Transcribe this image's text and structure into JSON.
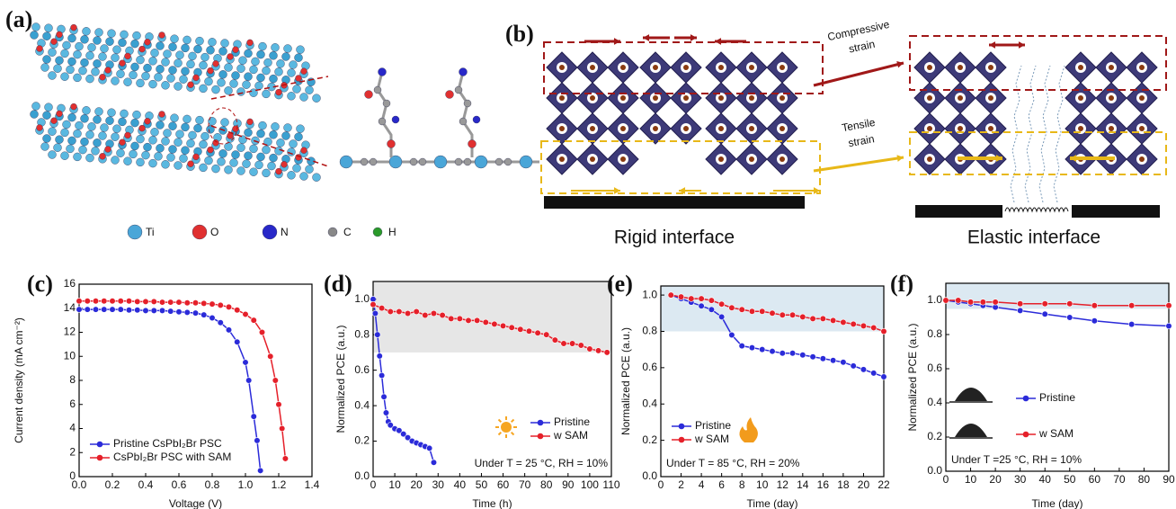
{
  "diagrams": {
    "a": {
      "label": "(a)",
      "legend": [
        "Ti",
        "O",
        "N",
        "C",
        "H"
      ]
    },
    "b": {
      "label": "(b)",
      "compressive": "Compressive\nstrain",
      "tensile": "Tensile\nstrain",
      "rigid": "Rigid interface",
      "elastic": "Elastic interface"
    }
  },
  "chart_data": [
    {
      "type": "line",
      "panel_label": "(c)",
      "x_label": "Voltage (V)",
      "y_label": "Current density (mA cm⁻²)",
      "legend": "lower-left",
      "xlim": [
        0,
        1.4
      ],
      "ylim": [
        0,
        16
      ],
      "xticks": [
        {
          "value": 0,
          "label": "0.0"
        },
        {
          "value": 0.2,
          "label": "0.2"
        },
        {
          "value": 0.4,
          "label": "0.4"
        },
        {
          "value": 0.6,
          "label": "0.6"
        },
        {
          "value": 0.8,
          "label": "0.8"
        },
        {
          "value": 1,
          "label": "1.0"
        },
        {
          "value": 1.2,
          "label": "1.2"
        },
        {
          "value": 1.4,
          "label": "1.4"
        }
      ],
      "yticks": [
        0,
        2,
        4,
        6,
        8,
        10,
        12,
        14,
        16
      ],
      "series": [
        {
          "name": "Pristine CsPbI₂Br PSC",
          "color": "#2b2bd9",
          "x": [
            0,
            0.05,
            0.1,
            0.15,
            0.2,
            0.25,
            0.3,
            0.35,
            0.4,
            0.45,
            0.5,
            0.55,
            0.6,
            0.65,
            0.7,
            0.75,
            0.8,
            0.85,
            0.9,
            0.95,
            1.0,
            1.02,
            1.05,
            1.07,
            1.09
          ],
          "values": [
            13.9,
            13.9,
            13.9,
            13.9,
            13.9,
            13.9,
            13.85,
            13.85,
            13.8,
            13.8,
            13.8,
            13.75,
            13.7,
            13.65,
            13.6,
            13.45,
            13.2,
            12.8,
            12.2,
            11.2,
            9.5,
            8,
            5,
            3,
            0.5
          ]
        },
        {
          "name": "CsPbI₂Br PSC with SAM",
          "color": "#e5202a",
          "x": [
            0,
            0.05,
            0.1,
            0.15,
            0.2,
            0.25,
            0.3,
            0.35,
            0.4,
            0.45,
            0.5,
            0.55,
            0.6,
            0.65,
            0.7,
            0.75,
            0.8,
            0.85,
            0.9,
            0.95,
            1.0,
            1.05,
            1.1,
            1.15,
            1.18,
            1.2,
            1.22,
            1.24
          ],
          "values": [
            14.6,
            14.6,
            14.6,
            14.6,
            14.6,
            14.6,
            14.6,
            14.55,
            14.55,
            14.55,
            14.5,
            14.5,
            14.5,
            14.45,
            14.45,
            14.4,
            14.35,
            14.25,
            14.1,
            13.85,
            13.5,
            13,
            12,
            10,
            8,
            6,
            4,
            1.5
          ]
        }
      ]
    },
    {
      "type": "line",
      "panel_label": "(d)",
      "x_label": "Time (h)",
      "y_label": "Normalized PCE (a.u.)",
      "legend": "lower-right",
      "annotation": "Under T = 25 °C, RH = 10%",
      "band": [
        0.7,
        1.1
      ],
      "xlim": [
        0,
        110
      ],
      "ylim": [
        0,
        1.1
      ],
      "xticks": [
        0,
        10,
        20,
        30,
        40,
        50,
        60,
        70,
        80,
        90,
        100,
        110
      ],
      "yticks": [
        {
          "value": 0,
          "label": "0.0"
        },
        {
          "value": 0.2,
          "label": "0.2"
        },
        {
          "value": 0.4,
          "label": "0.4"
        },
        {
          "value": 0.6,
          "label": "0.6"
        },
        {
          "value": 0.8,
          "label": "0.8"
        },
        {
          "value": 1,
          "label": "1.0"
        }
      ],
      "series": [
        {
          "name": "Pristine",
          "color": "#2b2bd9",
          "x": [
            0,
            1,
            2,
            3,
            4,
            5,
            6,
            7,
            8,
            10,
            12,
            14,
            16,
            18,
            20,
            22,
            24,
            26,
            28
          ],
          "values": [
            1.0,
            0.92,
            0.8,
            0.68,
            0.57,
            0.45,
            0.36,
            0.31,
            0.29,
            0.27,
            0.26,
            0.24,
            0.22,
            0.2,
            0.19,
            0.18,
            0.17,
            0.16,
            0.08
          ]
        },
        {
          "name": "w SAM",
          "color": "#e5202a",
          "x": [
            0,
            4,
            8,
            12,
            16,
            20,
            24,
            28,
            32,
            36,
            40,
            44,
            48,
            52,
            56,
            60,
            64,
            68,
            72,
            76,
            80,
            84,
            88,
            92,
            96,
            100,
            104,
            108
          ],
          "values": [
            0.97,
            0.95,
            0.93,
            0.93,
            0.92,
            0.93,
            0.91,
            0.92,
            0.91,
            0.89,
            0.89,
            0.88,
            0.88,
            0.87,
            0.86,
            0.85,
            0.84,
            0.83,
            0.82,
            0.81,
            0.8,
            0.77,
            0.75,
            0.75,
            0.74,
            0.72,
            0.71,
            0.7
          ]
        }
      ]
    },
    {
      "type": "line",
      "panel_label": "(e)",
      "x_label": "Time (day)",
      "y_label": "Normalized PCE (a.u.)",
      "legend": "lower-left",
      "annotation": "Under T = 85 °C,  RH = 20%",
      "band": [
        0.8,
        1.05
      ],
      "xlim": [
        0,
        22
      ],
      "ylim": [
        0,
        1.05
      ],
      "xticks": [
        0,
        2,
        4,
        6,
        8,
        10,
        12,
        14,
        16,
        18,
        20,
        22
      ],
      "yticks": [
        {
          "value": 0,
          "label": "0.0"
        },
        {
          "value": 0.2,
          "label": "0.2"
        },
        {
          "value": 0.4,
          "label": "0.4"
        },
        {
          "value": 0.6,
          "label": "0.6"
        },
        {
          "value": 0.8,
          "label": "0.8"
        },
        {
          "value": 1,
          "label": "1.0"
        }
      ],
      "series": [
        {
          "name": "Pristine",
          "color": "#2b2bd9",
          "x": [
            1,
            2,
            3,
            4,
            5,
            6,
            7,
            8,
            9,
            10,
            11,
            12,
            13,
            14,
            15,
            16,
            17,
            18,
            19,
            20,
            21,
            22
          ],
          "values": [
            1.0,
            0.98,
            0.96,
            0.94,
            0.92,
            0.88,
            0.78,
            0.72,
            0.71,
            0.7,
            0.69,
            0.68,
            0.68,
            0.67,
            0.66,
            0.65,
            0.64,
            0.63,
            0.61,
            0.59,
            0.57,
            0.55
          ]
        },
        {
          "name": "w SAM",
          "color": "#e5202a",
          "x": [
            1,
            2,
            3,
            4,
            5,
            6,
            7,
            8,
            9,
            10,
            11,
            12,
            13,
            14,
            15,
            16,
            17,
            18,
            19,
            20,
            21,
            22
          ],
          "values": [
            1.0,
            0.99,
            0.98,
            0.98,
            0.97,
            0.95,
            0.93,
            0.92,
            0.91,
            0.91,
            0.9,
            0.89,
            0.89,
            0.88,
            0.87,
            0.87,
            0.86,
            0.85,
            0.84,
            0.83,
            0.82,
            0.8
          ]
        }
      ]
    },
    {
      "type": "line",
      "panel_label": "(f)",
      "x_label": "Time (day)",
      "y_label": "Normalized PCE (a.u.)",
      "legend": "center-left",
      "annotation": "Under T =25 °C, RH = 10%",
      "band": [
        0.95,
        1.1
      ],
      "xlim": [
        0,
        90
      ],
      "ylim": [
        0,
        1.1
      ],
      "xticks": [
        0,
        10,
        20,
        30,
        40,
        50,
        60,
        70,
        80,
        90
      ],
      "yticks": [
        {
          "value": 0,
          "label": "0.0"
        },
        {
          "value": 0.2,
          "label": "0.2"
        },
        {
          "value": 0.4,
          "label": "0.4"
        },
        {
          "value": 0.6,
          "label": "0.6"
        },
        {
          "value": 0.8,
          "label": "0.8"
        },
        {
          "value": 1,
          "label": "1.0"
        }
      ],
      "series": [
        {
          "name": "Pristine",
          "color": "#2b2bd9",
          "x": [
            0,
            5,
            10,
            15,
            20,
            30,
            40,
            50,
            60,
            75,
            90
          ],
          "values": [
            1.0,
            0.99,
            0.98,
            0.97,
            0.96,
            0.94,
            0.92,
            0.9,
            0.88,
            0.86,
            0.85
          ]
        },
        {
          "name": "w SAM",
          "color": "#e5202a",
          "x": [
            0,
            5,
            10,
            15,
            20,
            30,
            40,
            50,
            60,
            75,
            90
          ],
          "values": [
            1.0,
            1.0,
            0.99,
            0.99,
            0.99,
            0.98,
            0.98,
            0.98,
            0.97,
            0.97,
            0.97
          ]
        }
      ]
    }
  ]
}
